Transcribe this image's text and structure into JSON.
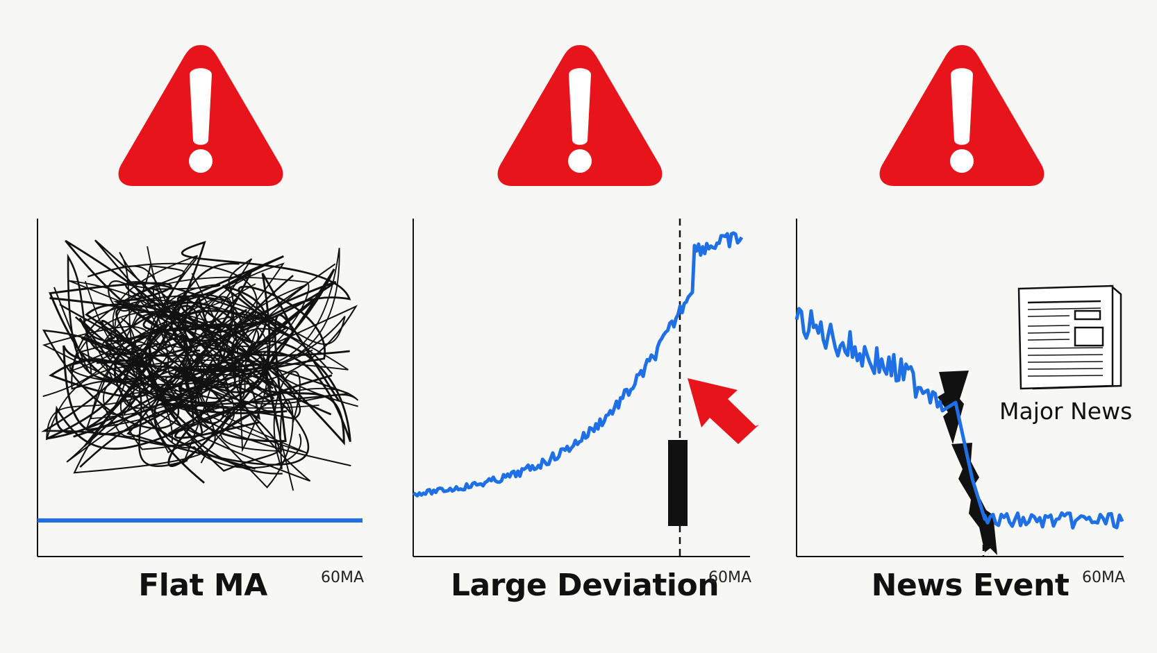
{
  "colors": {
    "warning_red": "#e8141b",
    "ma_blue": "#1f6fe5",
    "ink": "#111111",
    "background": "#f7f7f5"
  },
  "panels": [
    {
      "title": "Flat MA",
      "ma_label": "60MA",
      "warning_icon": "warning-triangle-icon",
      "description_icons": [
        "scribble-chaos-icon"
      ]
    },
    {
      "title": "Large Deviation",
      "ma_label": "60MA",
      "warning_icon": "warning-triangle-icon",
      "description_icons": [
        "red-arrow-icon",
        "candlestick-icon"
      ]
    },
    {
      "title": "News Event",
      "ma_label": "60MA",
      "news_label": "Major News",
      "warning_icon": "warning-triangle-icon",
      "description_icons": [
        "newspaper-icon",
        "lightning-crack-icon"
      ]
    }
  ]
}
